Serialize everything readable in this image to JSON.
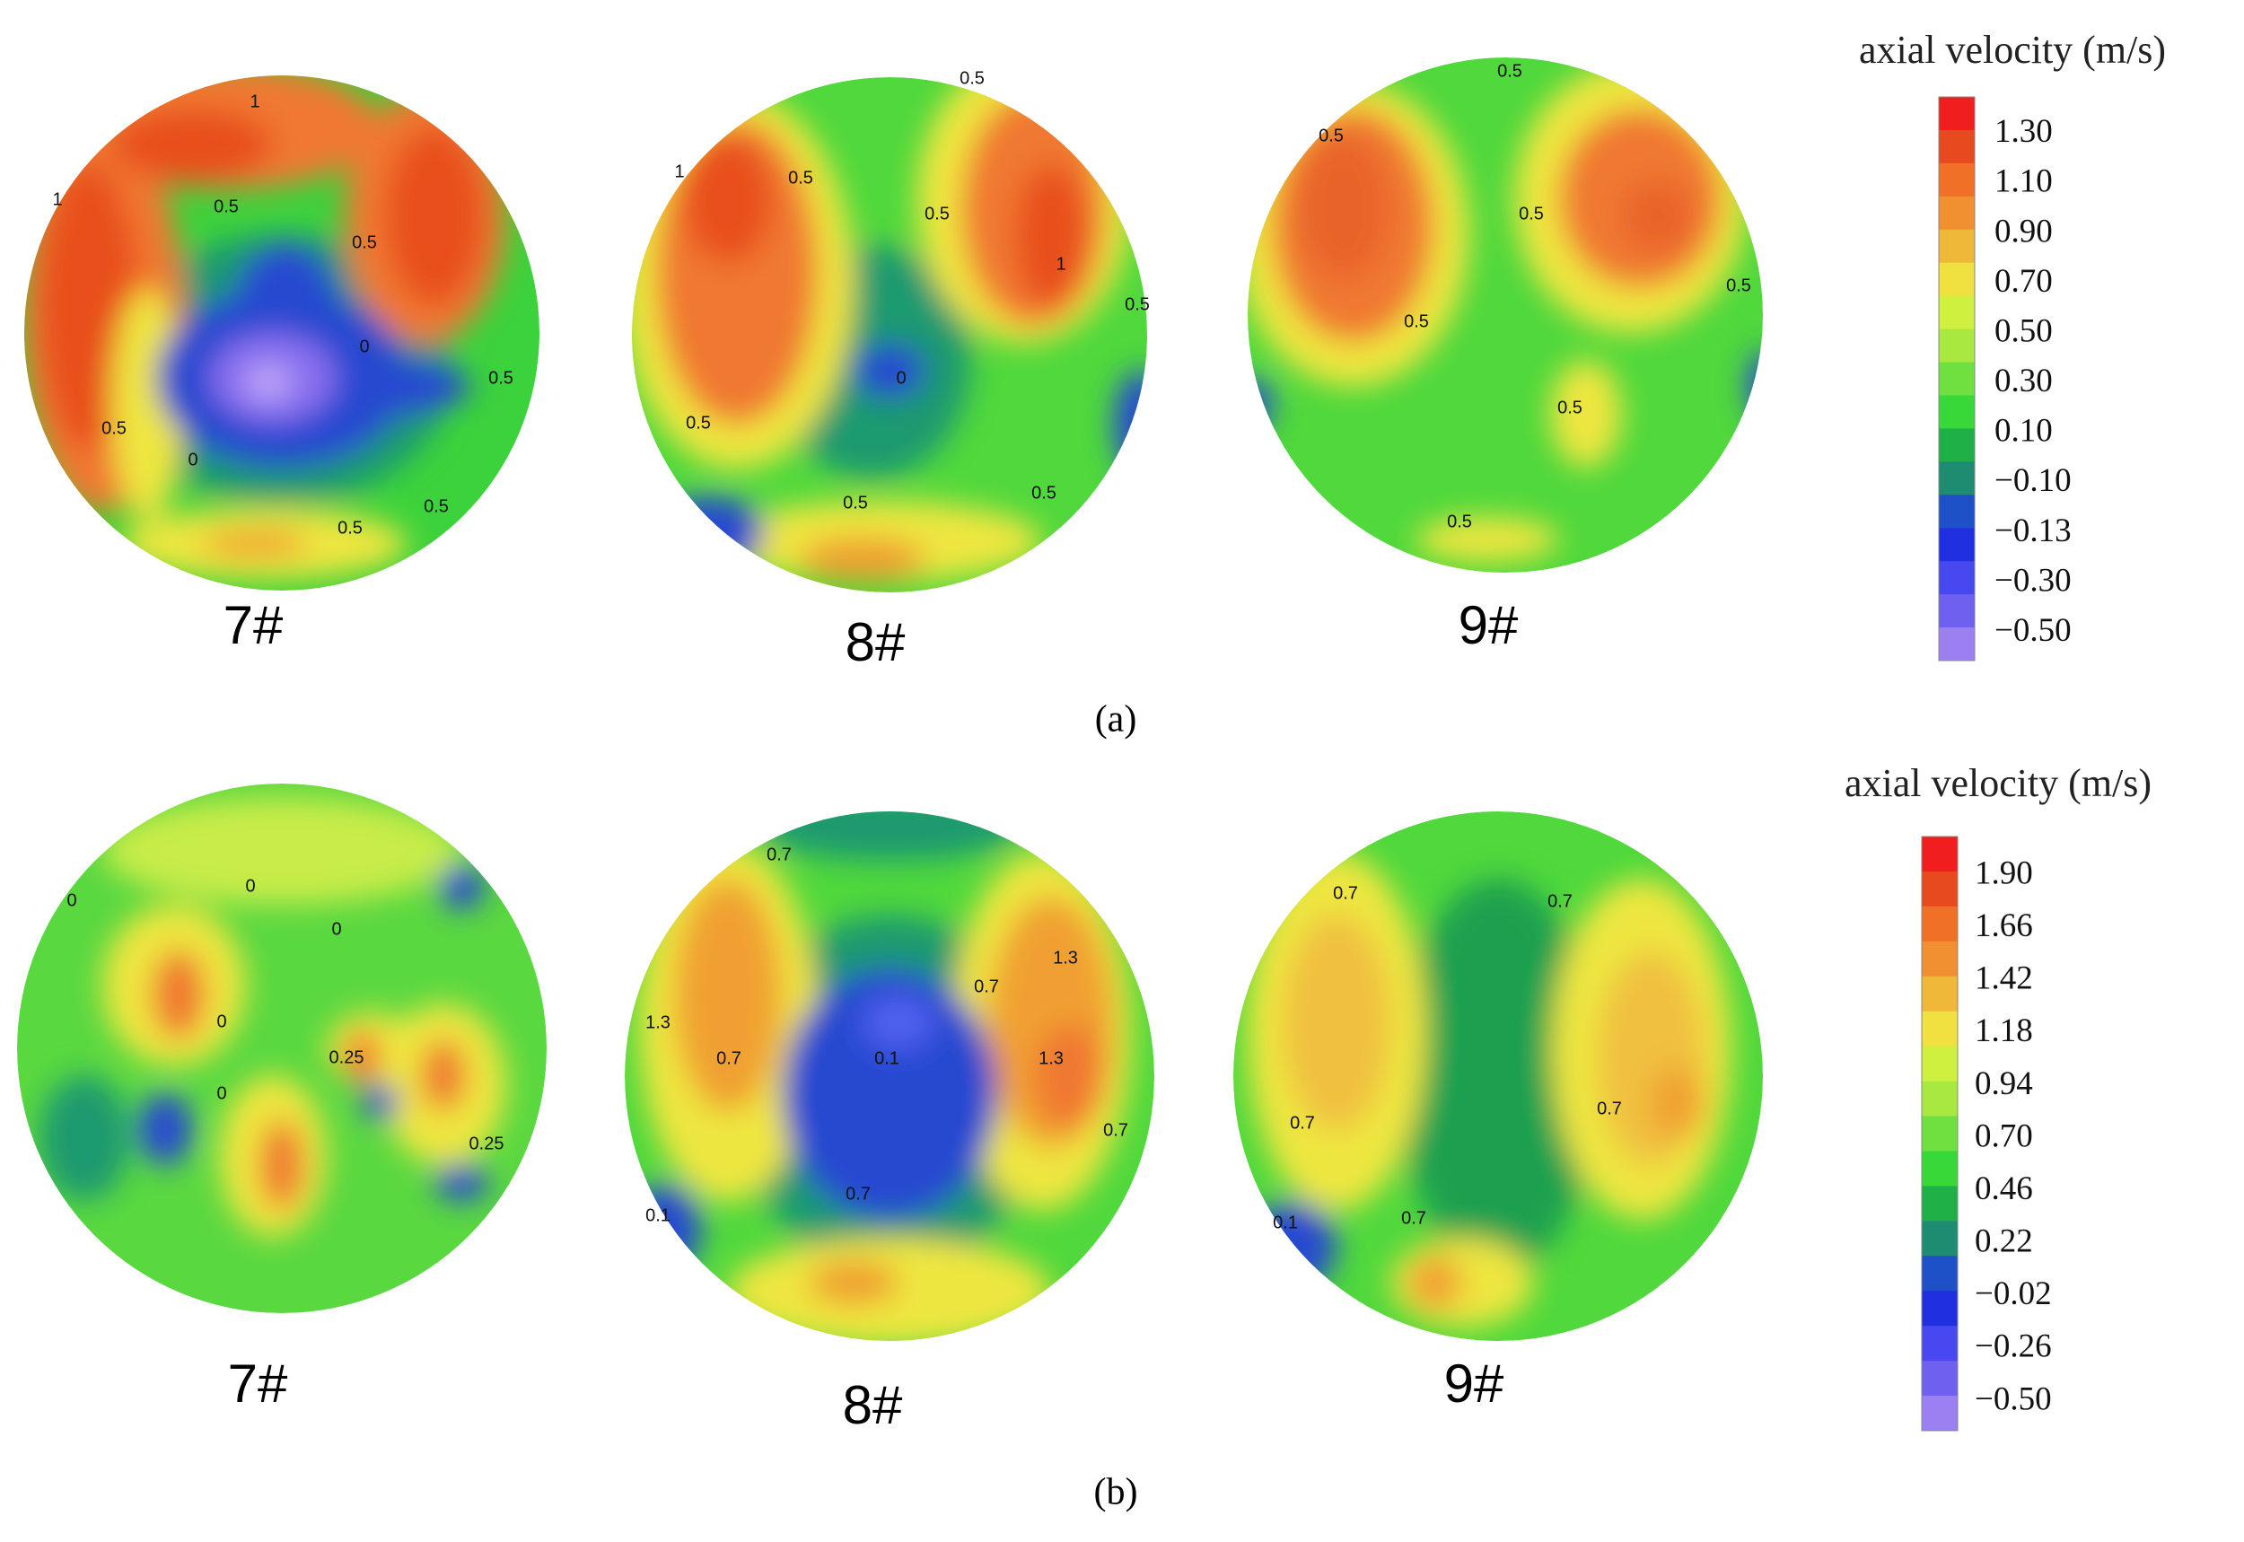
{
  "figure": {
    "panels": [
      {
        "label": "(a)",
        "colorbar": {
          "title": "axial velocity (m/s)",
          "ticks": [
            "1.30",
            "1.10",
            "0.90",
            "0.70",
            "0.50",
            "0.30",
            "0.10",
            "−0.10",
            "−0.13",
            "−0.30",
            "−0.50"
          ]
        },
        "plots": [
          {
            "label": "7#",
            "contour_labels": [
              "1",
              "1",
              "0.5",
              "0.5",
              "0",
              "0",
              "0.5",
              "0.5",
              "0.5",
              "0.5"
            ]
          },
          {
            "label": "8#",
            "contour_labels": [
              "0.5",
              "1",
              "0.5",
              "0.5",
              "1",
              "0.5",
              "0",
              "0.5",
              "0.5",
              "0.5"
            ]
          },
          {
            "label": "9#",
            "contour_labels": [
              "0.5",
              "0.5",
              "0.5",
              "0.5",
              "0.5",
              "0.5",
              "0.5"
            ]
          }
        ]
      },
      {
        "label": "(b)",
        "colorbar": {
          "title": "axial velocity (m/s)",
          "ticks": [
            "1.90",
            "1.66",
            "1.42",
            "1.18",
            "0.94",
            "0.70",
            "0.46",
            "0.22",
            "−0.02",
            "−0.26",
            "−0.50"
          ]
        },
        "plots": [
          {
            "label": "7#",
            "contour_labels": [
              "0",
              "0",
              "0",
              "0",
              "0.25",
              "0",
              "0.25"
            ]
          },
          {
            "label": "8#",
            "contour_labels": [
              "0.7",
              "0.7",
              "1.3",
              "0.1",
              "0.7",
              "1.3",
              "1.3",
              "0.7",
              "0.7",
              "0.1"
            ]
          },
          {
            "label": "9#",
            "contour_labels": [
              "0.7",
              "0.7",
              "0.7",
              "0.7",
              "0.7",
              "0.1"
            ]
          }
        ]
      }
    ]
  }
}
